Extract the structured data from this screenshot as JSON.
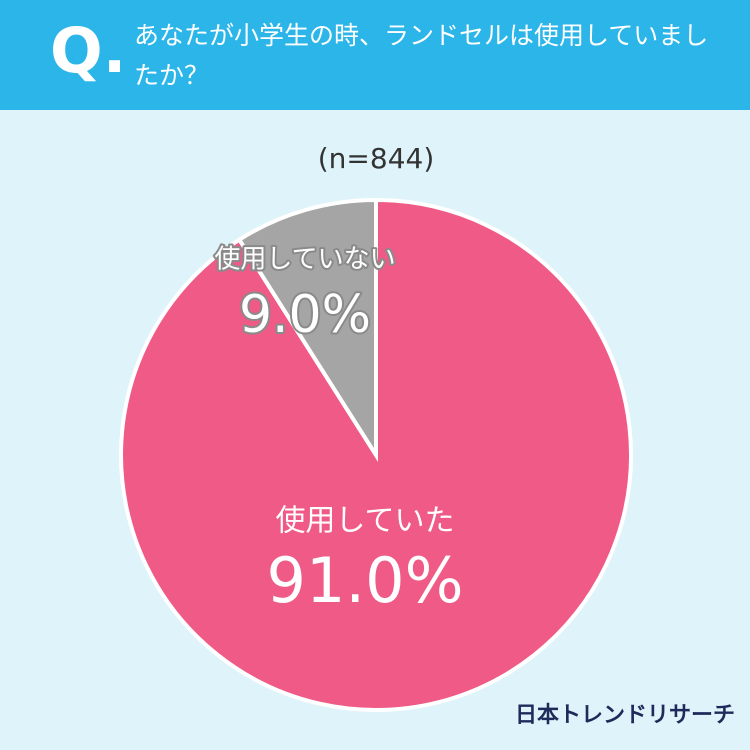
{
  "q_label": "Q.",
  "chart_data": {
    "type": "pie",
    "title": "あなたが小学生の時、ランドセルは使用していましたか？",
    "subtitle": "(n=844)",
    "categories": [
      "使用していた",
      "使用していない"
    ],
    "values": [
      91.0,
      9.0
    ],
    "value_labels": [
      "91.0%",
      "9.0%"
    ],
    "colors": [
      "#ef5a87",
      "#a5a5a5"
    ]
  },
  "brand": "日本トレンドリサーチ"
}
